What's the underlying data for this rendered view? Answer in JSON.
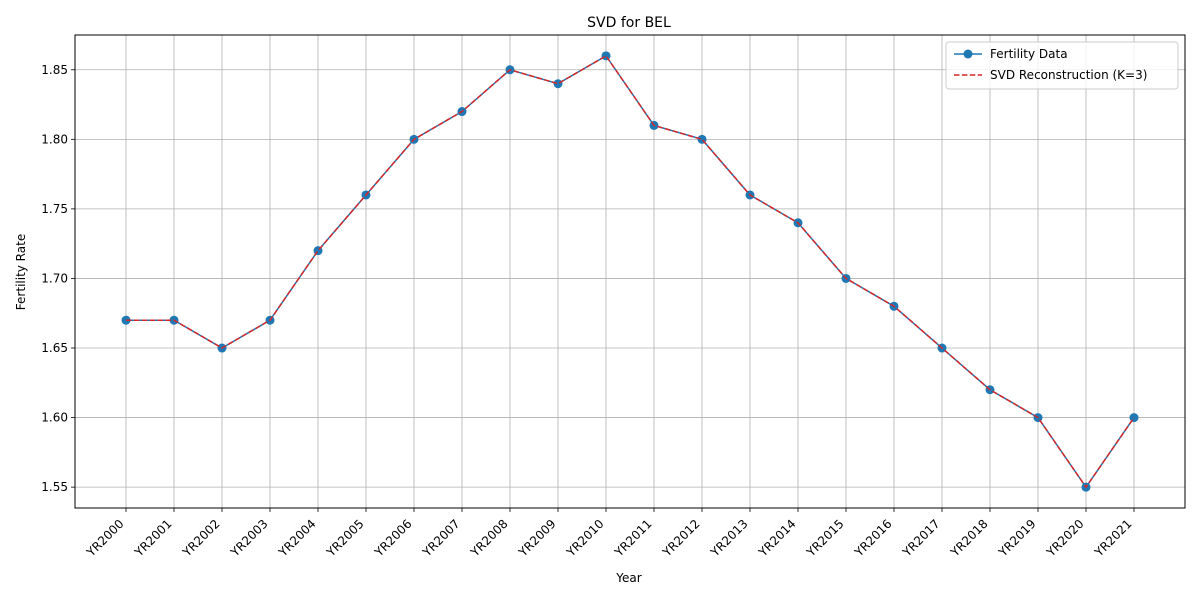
{
  "chart_data": {
    "type": "line",
    "title": "SVD for BEL",
    "xlabel": "Year",
    "ylabel": "Fertility Rate",
    "categories": [
      "YR2000",
      "YR2001",
      "YR2002",
      "YR2003",
      "YR2004",
      "YR2005",
      "YR2006",
      "YR2007",
      "YR2008",
      "YR2009",
      "YR2010",
      "YR2011",
      "YR2012",
      "YR2013",
      "YR2014",
      "YR2015",
      "YR2016",
      "YR2017",
      "YR2018",
      "YR2019",
      "YR2020",
      "YR2021"
    ],
    "ylim": [
      1.535,
      1.875
    ],
    "yticks": [
      "1.55",
      "1.60",
      "1.65",
      "1.70",
      "1.75",
      "1.80",
      "1.85"
    ],
    "grid": true,
    "legend_position": "top-right",
    "series": [
      {
        "name": "Fertility Data",
        "style": "solid line with circle markers",
        "color": "#1f77b4",
        "values": [
          1.67,
          1.67,
          1.65,
          1.67,
          1.72,
          1.76,
          1.8,
          1.82,
          1.85,
          1.84,
          1.86,
          1.81,
          1.8,
          1.76,
          1.74,
          1.7,
          1.68,
          1.65,
          1.62,
          1.6,
          1.55,
          1.6
        ]
      },
      {
        "name": "SVD Reconstruction (K=3)",
        "style": "dashed line",
        "color": "#d62728",
        "values": [
          1.67,
          1.67,
          1.65,
          1.67,
          1.72,
          1.76,
          1.8,
          1.82,
          1.85,
          1.84,
          1.86,
          1.81,
          1.8,
          1.76,
          1.74,
          1.7,
          1.68,
          1.65,
          1.62,
          1.6,
          1.55,
          1.6
        ]
      }
    ]
  }
}
